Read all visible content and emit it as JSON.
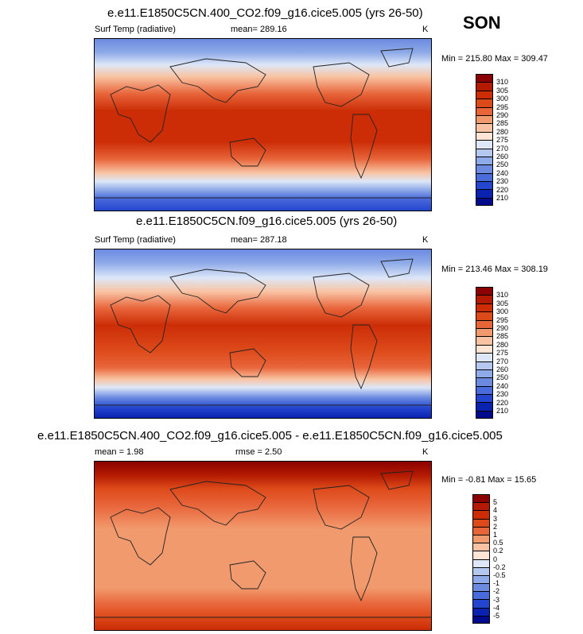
{
  "season": "SON",
  "chart_data": [
    {
      "type": "heatmap",
      "title": "e.e11.E1850C5CN.400_CO2.f09_g16.cice5.005 (yrs 26-50)",
      "left_label": "Surf Temp (radiative)",
      "mean_text": "mean= 289.16",
      "units": "K",
      "minmax_text": "Min = 215.80 Max = 309.47",
      "levels": [
        "310",
        "305",
        "300",
        "295",
        "290",
        "285",
        "280",
        "275",
        "270",
        "260",
        "250",
        "240",
        "230",
        "220",
        "210"
      ],
      "colors": [
        "#8b0000",
        "#b31a00",
        "#cc2d07",
        "#dd4a1a",
        "#e8653a",
        "#f19a6d",
        "#f8c3a3",
        "#fde4d4",
        "#dde7f8",
        "#b5c9f0",
        "#8eaae8",
        "#6b8ae0",
        "#4a6bdc",
        "#2446cf",
        "#0a22b0",
        "#000a8c"
      ]
    },
    {
      "type": "heatmap",
      "title": "e.e11.E1850C5CN.f09_g16.cice5.005 (yrs 26-50)",
      "left_label": "Surf Temp (radiative)",
      "mean_text": "mean= 287.18",
      "units": "K",
      "minmax_text": "Min = 213.46 Max = 308.19",
      "levels": [
        "310",
        "305",
        "300",
        "295",
        "290",
        "285",
        "280",
        "275",
        "270",
        "260",
        "250",
        "240",
        "230",
        "220",
        "210"
      ],
      "colors": [
        "#8b0000",
        "#b31a00",
        "#cc2d07",
        "#dd4a1a",
        "#e8653a",
        "#f19a6d",
        "#f8c3a3",
        "#fde4d4",
        "#dde7f8",
        "#b5c9f0",
        "#8eaae8",
        "#6b8ae0",
        "#4a6bdc",
        "#2446cf",
        "#0a22b0",
        "#000a8c"
      ]
    },
    {
      "type": "heatmap",
      "title": "e.e11.E1850C5CN.400_CO2.f09_g16.cice5.005 - e.e11.E1850C5CN.f09_g16.cice5.005",
      "mean_text": "mean =   1.98",
      "rmse_text": "rmse =   2.50",
      "units": "K",
      "minmax_text": "Min = -0.81 Max = 15.65",
      "levels": [
        "5",
        "4",
        "3",
        "2",
        "1",
        "0.5",
        "0.2",
        "0",
        "-0.2",
        "-0.5",
        "-1",
        "-2",
        "-3",
        "-4",
        "-5"
      ],
      "colors": [
        "#8b0000",
        "#b31a00",
        "#cc2d07",
        "#dd4a1a",
        "#e8653a",
        "#f19a6d",
        "#f8c3a3",
        "#fde4d4",
        "#dde7f8",
        "#b5c9f0",
        "#8eaae8",
        "#6b8ae0",
        "#4a6bdc",
        "#2446cf",
        "#0a22b0",
        "#000a8c"
      ]
    }
  ]
}
